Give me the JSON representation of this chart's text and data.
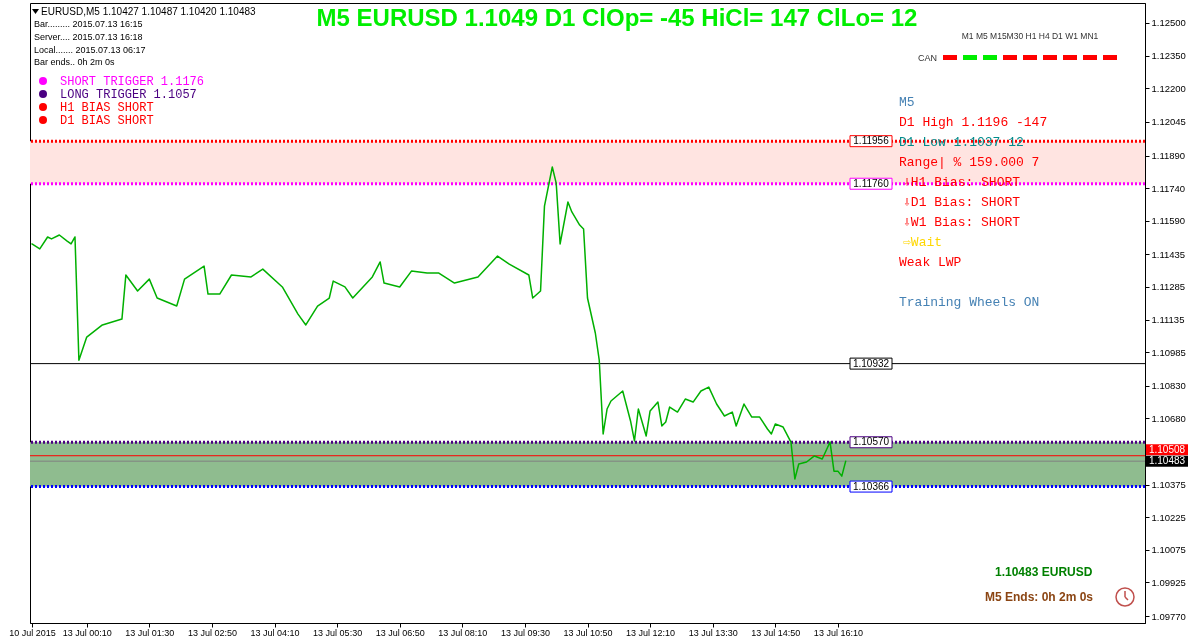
{
  "chart_data": {
    "type": "line",
    "title": "M5 EURUSD 1.1049 D1 ClOp= -45 HiCl= 147 ClLo= 12",
    "categories": [
      "10 Jul 2015",
      null,
      null,
      null,
      null,
      null,
      null,
      null,
      null,
      null,
      null,
      null,
      null,
      null,
      "13 Jul 00:10",
      null,
      null,
      null,
      null,
      null,
      null,
      null,
      null,
      null,
      null,
      null,
      null,
      null,
      null,
      null,
      "13 Jul 01:30",
      null,
      null,
      null,
      null,
      null,
      null,
      null,
      null,
      null,
      null,
      null,
      null,
      null,
      null,
      null,
      "13 Jul 02:50",
      null,
      null,
      null,
      null,
      null,
      null,
      null,
      null,
      null,
      null,
      null,
      null,
      null,
      null,
      null,
      "13 Jul 04:10",
      null,
      null,
      null,
      null,
      null,
      null,
      null,
      null,
      null,
      null,
      null,
      null,
      null,
      null,
      null,
      "13 Jul 05:30",
      null,
      null,
      null,
      null,
      null,
      null,
      null,
      null,
      null,
      null,
      null,
      null,
      null,
      null,
      null,
      "13 Jul 06:50",
      null,
      null,
      null,
      null,
      null,
      null,
      null,
      null,
      null,
      null,
      null,
      null,
      null,
      null,
      null,
      "13 Jul 08:10",
      null,
      null,
      null,
      null,
      null,
      null,
      null,
      null,
      null,
      null,
      null,
      null,
      null,
      null,
      null,
      "13 Jul 09:30",
      null,
      null,
      null,
      null,
      null,
      null,
      null,
      null,
      null,
      null,
      null,
      null,
      null,
      null,
      null,
      "13 Jul 10:50",
      null,
      null,
      null,
      null,
      null,
      null,
      null,
      null,
      null,
      null,
      null,
      null,
      null,
      null,
      null,
      "13 Jul 12:10",
      null,
      null,
      null,
      null,
      null,
      null,
      null,
      null,
      null,
      null,
      null,
      null,
      null,
      null,
      null,
      "13 Jul 13:30",
      null,
      null,
      null,
      null,
      null,
      null,
      null,
      null,
      null,
      null,
      null,
      null,
      null,
      null,
      null,
      "13 Jul 14:50",
      null,
      null,
      null,
      null,
      null,
      null,
      null,
      null,
      null,
      null,
      null,
      null,
      null,
      null,
      null,
      "13 Jul 16:10",
      null,
      null,
      null,
      null,
      null,
      null,
      null,
      null,
      null,
      null,
      null,
      null,
      null,
      null,
      null,
      null,
      null,
      null,
      null,
      null,
      null,
      null,
      null,
      null,
      null,
      null,
      null,
      null,
      null,
      null,
      null,
      null,
      null,
      null,
      null,
      null,
      null,
      null,
      null,
      null,
      null,
      null,
      null,
      null,
      null,
      null,
      null,
      null,
      null,
      null,
      null,
      null,
      null,
      null,
      null,
      null,
      null,
      null,
      null,
      null,
      null,
      null,
      null,
      null,
      null,
      null,
      null,
      null,
      null,
      null,
      null,
      null,
      null,
      null,
      null,
      null,
      null,
      null
    ],
    "ylim": [
      1.09738,
      1.12592
    ],
    "yticks": [
      {
        "value": 1.125,
        "label": "1.12500"
      },
      {
        "value": 1.1235,
        "label": "1.12350"
      },
      {
        "value": 1.122,
        "label": "1.12200"
      },
      1.12045,
      {
        "value": 1.1189,
        "label": "1.11890"
      },
      {
        "value": 1.1174,
        "label": "1.11740"
      },
      {
        "value": 1.1159,
        "label": "1.11590"
      },
      1.11435,
      1.11285,
      1.11135,
      1.10985,
      {
        "value": 1.1083,
        "label": "1.10830"
      },
      {
        "value": 1.1068,
        "label": "1.10680"
      },
      1.10375,
      1.10225,
      1.10075,
      1.09925,
      {
        "value": 1.0977,
        "label": "1.09770"
      }
    ],
    "grid": false,
    "marker": "none",
    "line_style": "solid",
    "series": [
      {
        "color": "#00b000",
        "values": [
          1.11483,
          null,
          1.1146,
          null,
          1.11515,
          1.11506,
          null,
          1.11524,
          null,
          1.11496,
          1.11483,
          1.11515,
          1.10948,
          null,
          1.11054,
          null,
          null,
          null,
          1.1111,
          null,
          null,
          null,
          null,
          1.11137,
          1.1134,
          null,
          null,
          1.11266,
          null,
          null,
          1.11321,
          null,
          1.11234,
          null,
          null,
          null,
          null,
          1.11197,
          null,
          1.11321,
          null,
          null,
          null,
          null,
          1.11381,
          1.11252,
          null,
          null,
          1.11252,
          null,
          null,
          1.1134,
          null,
          null,
          null,
          null,
          1.11331,
          null,
          null,
          1.11367,
          null,
          null,
          null,
          null,
          1.11285,
          null,
          null,
          null,
          1.1116,
          null,
          1.1111,
          null,
          null,
          1.11197,
          null,
          null,
          1.11234,
          1.11312,
          null,
          null,
          1.11285,
          null,
          1.11234,
          null,
          null,
          null,
          null,
          1.11331,
          null,
          1.114,
          1.11303,
          null,
          null,
          null,
          1.11285,
          null,
          null,
          1.11358,
          null,
          null,
          null,
          1.11349,
          null,
          null,
          1.11349,
          null,
          null,
          null,
          1.11303,
          null,
          null,
          null,
          null,
          null,
          1.11331,
          null,
          null,
          null,
          null,
          1.11427,
          null,
          null,
          1.1139,
          null,
          null,
          null,
          null,
          1.1134,
          1.11234,
          null,
          1.11266,
          1.11657,
          null,
          1.11837,
          1.11763,
          1.11483,
          null,
          1.11676,
          1.1163,
          null,
          1.1157,
          1.11552,
          1.11234,
          null,
          1.11073,
          1.10948,
          1.10608,
          1.10723,
          1.1076,
          null,
          null,
          1.10806,
          null,
          1.10668,
          1.10576,
          1.10723,
          null,
          1.10599,
          1.10714,
          null,
          1.10755,
          1.10645,
          1.10663,
          1.10732,
          null,
          1.10709,
          null,
          1.10769,
          null,
          1.10755,
          null,
          1.10806,
          null,
          1.10824,
          null,
          1.10746,
          null,
          1.10691,
          null,
          1.10709,
          1.10645,
          null,
          1.10746,
          null,
          1.10686,
          null,
          1.10686,
          null,
          1.10631,
          1.10608,
          1.10654,
          null,
          1.1064,
          null,
          1.10571,
          1.10401,
          1.1047,
          null,
          1.10479,
          null,
          1.10507,
          null,
          1.10493,
          null,
          1.10571,
          1.10437,
          1.10437,
          1.10414,
          1.10483,
          null,
          null,
          null,
          null,
          null,
          null,
          null,
          null,
          null,
          null,
          null,
          null,
          null,
          null,
          null,
          null,
          null,
          null,
          null,
          null,
          null,
          null,
          null,
          null,
          null,
          null,
          null,
          null,
          null,
          null,
          null,
          null,
          null,
          null,
          null,
          null,
          null,
          null,
          null,
          null,
          null,
          null,
          null,
          null,
          null,
          null,
          null,
          null,
          null,
          null,
          null,
          null,
          null,
          null,
          null,
          null,
          null,
          null,
          null,
          null,
          null,
          null,
          null,
          null,
          null,
          null,
          null,
          null,
          null,
          null,
          null,
          null,
          null,
          null,
          null,
          null
        ]
      }
    ],
    "bands": [
      {
        "axis": "y",
        "from": 1.1176,
        "to": 1.11956,
        "color": "#ffe4e1"
      },
      {
        "axis": "y",
        "from": 1.10366,
        "to": 1.1057,
        "color": "#8fbc8f"
      }
    ],
    "ref_lines": [
      {
        "axis": "y",
        "value": 1.11956,
        "label": "1.11956",
        "color": "#ff0000",
        "line_style": "dotted"
      },
      {
        "axis": "y",
        "value": 1.1176,
        "label": "1.11760",
        "color": "#ff00ff",
        "line_style": "dotted"
      },
      {
        "axis": "y",
        "value": 1.10932,
        "label": "1.10932",
        "color": "#000000",
        "line_style": "solid"
      },
      {
        "axis": "y",
        "value": 1.1057,
        "label": "1.10570",
        "color": "#4b0082",
        "line_style": "dotted"
      },
      {
        "axis": "y",
        "value": 1.10366,
        "label": "1.10366",
        "color": "#0000ff",
        "line_style": "dotted"
      },
      {
        "axis": "y",
        "value": 1.10508,
        "label": "1.10508",
        "color": "#ff0000",
        "line_style": "solid"
      },
      {
        "axis": "y",
        "value": 1.10483,
        "label": "1.10483",
        "color": "#808080",
        "line_style": "solid"
      }
    ],
    "annotations": [
      "EURUSD,M5  1.10427 1.10487 1.10420 1.10483",
      "Bar......... 2015.07.13 16:15",
      "Server.... 2015.07.13 16:18",
      "Local....... 2015.07.13 06:17",
      "Bar ends.. 0h 2m 0s",
      "SHORT TRIGGER 1.1176",
      "LONG TRIGGER  1.1057",
      "H1 BIAS SHORT",
      "D1 BIAS SHORT",
      "M1  M5  M15M30  H1  H4  D1  W1  MN1",
      "CAN",
      "M5",
      "D1 High    1.1196   -147",
      "D1 Low     1.1037     12",
      "Range| %   159.000     7",
      "⇩H1 Bias: SHORT",
      "⇩D1 Bias: SHORT",
      "⇩W1 Bias: SHORT",
      "⇨Wait",
      "Weak LWP",
      "Training Wheels ON",
      "1.10483  EURUSD",
      "M5 Ends: 0h 2m 0s"
    ]
  }
}
